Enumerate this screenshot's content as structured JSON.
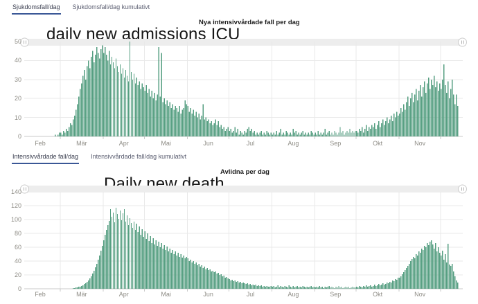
{
  "tabs_top": {
    "items": [
      {
        "label": "Sjukdomsfall/dag",
        "active": true
      },
      {
        "label": "Sjukdomsfall/dag kumulativt",
        "active": false
      }
    ]
  },
  "tabs_mid": {
    "items": [
      {
        "label": "Intensivvårdade fall/dag",
        "active": true
      },
      {
        "label": "Intensivvårdade fall/dag kumulativt",
        "active": false
      }
    ]
  },
  "theme": {
    "bar_color": "#549e80",
    "tab_underline_color": "#3a5796",
    "grid_color": "#e9e9e9",
    "axis_line_color": "#c9c9c9",
    "axis_text_color": "#8e8c85",
    "scrollbar_track_color": "#ededed"
  },
  "chart_data": [
    {
      "type": "bar",
      "title": "daily new admissions ICU",
      "subtitle": "Nya intensivvårdade fall per dag",
      "ylabel": "",
      "xlabel": "",
      "ylim": [
        0,
        50
      ],
      "yticks": [
        0,
        10,
        20,
        30,
        40,
        50
      ],
      "grid": true,
      "legend_position": "none",
      "x_start": "2020-02-01",
      "month_labels": [
        "Feb",
        "Mär",
        "Apr",
        "Mai",
        "Jun",
        "Jul",
        "Aug",
        "Sep",
        "Okt",
        "Nov",
        ""
      ],
      "month_days": [
        29,
        31,
        30,
        31,
        30,
        31,
        31,
        30,
        31,
        30,
        16
      ],
      "values": [
        0,
        0,
        0,
        0,
        0,
        0,
        0,
        0,
        0,
        0,
        0,
        0,
        0,
        0,
        0,
        0,
        0,
        0,
        0,
        0,
        0,
        0,
        0,
        0,
        0,
        1,
        0,
        1,
        2,
        2,
        1,
        3,
        2,
        4,
        3,
        5,
        7,
        6,
        9,
        11,
        14,
        17,
        21,
        25,
        28,
        32,
        35,
        30,
        37,
        40,
        36,
        42,
        45,
        39,
        43,
        47,
        44,
        41,
        46,
        48,
        44,
        47,
        43,
        40,
        45,
        38,
        42,
        39,
        36,
        41,
        37,
        34,
        38,
        33,
        36,
        31,
        35,
        32,
        29,
        50,
        34,
        30,
        33,
        28,
        31,
        27,
        29,
        25,
        28,
        26,
        24,
        27,
        23,
        25,
        21,
        24,
        20,
        23,
        19,
        22,
        47,
        21,
        44,
        18,
        20,
        17,
        19,
        16,
        18,
        15,
        17,
        14,
        16,
        15,
        13,
        16,
        12,
        14,
        15,
        19,
        17,
        16,
        13,
        15,
        12,
        14,
        11,
        13,
        10,
        12,
        9,
        11,
        17,
        9,
        10,
        8,
        9,
        7,
        8,
        6,
        7,
        9,
        6,
        8,
        5,
        6,
        4,
        5,
        3,
        4,
        5,
        3,
        4,
        2,
        3,
        5,
        2,
        4,
        1,
        3,
        2,
        1,
        3,
        2,
        4,
        5,
        3,
        4,
        2,
        3,
        1,
        2,
        1,
        2,
        3,
        1,
        2,
        1,
        3,
        2,
        1,
        2,
        1,
        2,
        1,
        3,
        1,
        2,
        4,
        1,
        2,
        1,
        3,
        2,
        1,
        2,
        1,
        4,
        2,
        3,
        1,
        2,
        1,
        2,
        3,
        1,
        2,
        1,
        2,
        1,
        3,
        2,
        1,
        2,
        1,
        3,
        1,
        2,
        1,
        2,
        4,
        1,
        2,
        3,
        1,
        2,
        1,
        3,
        2,
        1,
        2,
        5,
        2,
        3,
        1,
        2,
        3,
        2,
        4,
        2,
        3,
        2,
        3,
        3,
        2,
        4,
        3,
        5,
        2,
        4,
        6,
        3,
        5,
        4,
        6,
        5,
        7,
        4,
        6,
        8,
        5,
        7,
        9,
        6,
        8,
        10,
        7,
        9,
        11,
        8,
        12,
        10,
        13,
        11,
        12,
        15,
        13,
        17,
        14,
        18,
        21,
        16,
        20,
        23,
        18,
        22,
        25,
        19,
        24,
        27,
        21,
        26,
        29,
        23,
        28,
        31,
        25,
        30,
        27,
        32,
        26,
        29,
        24,
        28,
        25,
        30,
        38,
        27,
        23,
        29,
        20,
        25,
        30,
        22,
        17,
        22,
        16
      ]
    },
    {
      "type": "bar",
      "title": "Daily new death",
      "subtitle": "Avlidna per dag",
      "ylabel": "",
      "xlabel": "",
      "ylim": [
        0,
        140
      ],
      "yticks": [
        0,
        20,
        40,
        60,
        80,
        100,
        120,
        140
      ],
      "grid": true,
      "legend_position": "none",
      "x_start": "2020-02-01",
      "month_labels": [
        "Feb",
        "Mär",
        "Apr",
        "Mai",
        "Jun",
        "Jul",
        "Aug",
        "Sep",
        "Okt",
        "Nov",
        ""
      ],
      "month_days": [
        29,
        31,
        30,
        31,
        30,
        31,
        31,
        30,
        31,
        30,
        16
      ],
      "values": [
        0,
        0,
        0,
        0,
        0,
        0,
        0,
        0,
        0,
        0,
        0,
        0,
        0,
        0,
        0,
        0,
        0,
        0,
        0,
        0,
        0,
        0,
        0,
        0,
        0,
        0,
        0,
        0,
        0,
        0,
        0,
        0,
        0,
        0,
        0,
        0,
        0,
        0,
        1,
        1,
        2,
        2,
        3,
        3,
        4,
        5,
        7,
        8,
        10,
        12,
        15,
        18,
        22,
        26,
        31,
        36,
        42,
        48,
        55,
        62,
        70,
        78,
        85,
        92,
        98,
        115,
        104,
        110,
        96,
        117,
        108,
        101,
        113,
        99,
        109,
        115,
        97,
        106,
        92,
        102,
        95,
        88,
        97,
        85,
        94,
        82,
        90,
        78,
        86,
        75,
        83,
        72,
        80,
        69,
        76,
        66,
        73,
        64,
        70,
        62,
        68,
        60,
        66,
        58,
        63,
        56,
        61,
        54,
        58,
        52,
        56,
        50,
        54,
        48,
        52,
        46,
        50,
        45,
        48,
        44,
        46,
        44,
        40,
        42,
        38,
        40,
        36,
        38,
        34,
        36,
        32,
        34,
        30,
        32,
        28,
        30,
        27,
        28,
        25,
        26,
        24,
        25,
        22,
        23,
        20,
        21,
        18,
        19,
        16,
        17,
        15,
        14,
        12,
        13,
        11,
        12,
        10,
        11,
        9,
        10,
        8,
        9,
        8,
        7,
        8,
        6,
        7,
        5,
        6,
        5,
        6,
        4,
        5,
        4,
        5,
        3,
        4,
        3,
        4,
        3,
        3,
        4,
        3,
        4,
        2,
        3,
        5,
        2,
        4,
        3,
        2,
        4,
        3,
        2,
        5,
        3,
        2,
        4,
        2,
        3,
        4,
        2,
        3,
        2,
        4,
        3,
        2,
        3,
        2,
        3,
        4,
        2,
        3,
        2,
        3,
        2,
        4,
        2,
        3,
        1,
        3,
        2,
        3,
        4,
        2,
        3,
        2,
        1,
        3,
        2,
        4,
        2,
        3,
        1,
        2,
        3,
        2,
        3,
        1,
        2,
        3,
        2,
        2,
        3,
        2,
        4,
        3,
        2,
        4,
        3,
        5,
        3,
        4,
        5,
        3,
        4,
        6,
        4,
        5,
        7,
        5,
        6,
        8,
        6,
        7,
        9,
        8,
        10,
        9,
        12,
        11,
        14,
        13,
        16,
        16,
        18,
        21,
        24,
        27,
        30,
        33,
        36,
        40,
        43,
        46,
        44,
        50,
        48,
        54,
        52,
        58,
        56,
        62,
        60,
        66,
        63,
        68,
        70,
        64,
        58,
        66,
        54,
        60,
        52,
        48,
        55,
        42,
        50,
        38,
        65,
        35,
        33,
        36,
        25,
        18,
        12,
        9
      ]
    }
  ]
}
